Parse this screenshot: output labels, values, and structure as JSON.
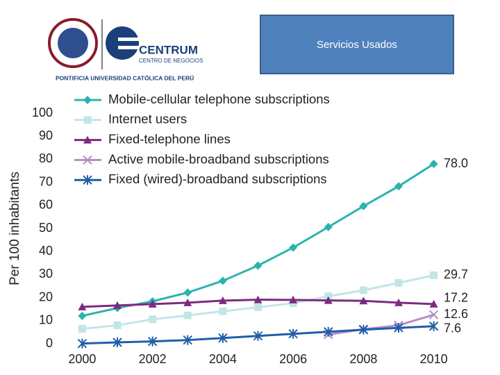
{
  "header": {
    "title": "Servicios Usados",
    "logo_name": "CENTRUM",
    "logo_subtitle": "CENTRO DE NEGOCIOS",
    "university": "PONTIFICIA UNIVERSIDAD CATÓLICA DEL PERÚ"
  },
  "chart_data": {
    "type": "line",
    "y_label": "Per 100 inhabitants",
    "x": [
      2000,
      2001,
      2002,
      2003,
      2004,
      2005,
      2006,
      2007,
      2008,
      2009,
      2010
    ],
    "xlim": [
      1999.4,
      2010.6
    ],
    "xticks": [
      2000,
      2002,
      2004,
      2006,
      2008,
      2010
    ],
    "ylim": [
      0,
      100
    ],
    "yticks": [
      0,
      10,
      20,
      30,
      40,
      50,
      60,
      70,
      80,
      90,
      100
    ],
    "grid": false,
    "legend": "upper left",
    "series": [
      {
        "name": "Mobile-cellular telephone subscriptions",
        "color": "#2bb3ad",
        "marker": "diamond",
        "values": [
          12.1,
          15.5,
          18.4,
          22.2,
          27.3,
          33.9,
          41.7,
          50.6,
          59.7,
          68.3,
          78.0
        ],
        "value_labels": [
          null,
          null,
          null,
          null,
          null,
          null,
          null,
          null,
          null,
          null,
          "78.0"
        ]
      },
      {
        "name": "Internet users",
        "color": "#c2e5e6",
        "marker": "square",
        "values": [
          6.5,
          8.0,
          10.6,
          12.3,
          14.1,
          15.8,
          17.6,
          20.6,
          23.2,
          26.4,
          29.7
        ],
        "value_labels": [
          null,
          null,
          null,
          null,
          null,
          null,
          null,
          null,
          null,
          null,
          "29.7"
        ]
      },
      {
        "name": "Fixed-telephone lines",
        "color": "#7d2a82",
        "marker": "triangle",
        "values": [
          16.0,
          16.6,
          17.2,
          17.8,
          18.7,
          19.1,
          19.0,
          18.8,
          18.6,
          17.8,
          17.2
        ],
        "value_labels": [
          null,
          null,
          null,
          null,
          null,
          null,
          null,
          null,
          null,
          null,
          "17.2"
        ]
      },
      {
        "name": "Active mobile-broadband subscriptions",
        "color": "#b58cc6",
        "marker": "x",
        "values": [
          null,
          null,
          null,
          null,
          null,
          null,
          null,
          4.0,
          6.3,
          8.0,
          12.6
        ],
        "value_labels": [
          null,
          null,
          null,
          null,
          null,
          null,
          null,
          null,
          null,
          null,
          "12.6"
        ]
      },
      {
        "name": "Fixed (wired)-broadband subscriptions",
        "color": "#1f5ea8",
        "marker": "star",
        "values": [
          0.1,
          0.6,
          1.0,
          1.6,
          2.5,
          3.4,
          4.3,
          5.2,
          6.1,
          6.9,
          7.6
        ],
        "value_labels": [
          null,
          null,
          null,
          null,
          null,
          null,
          null,
          null,
          null,
          null,
          "7.6"
        ]
      }
    ]
  }
}
